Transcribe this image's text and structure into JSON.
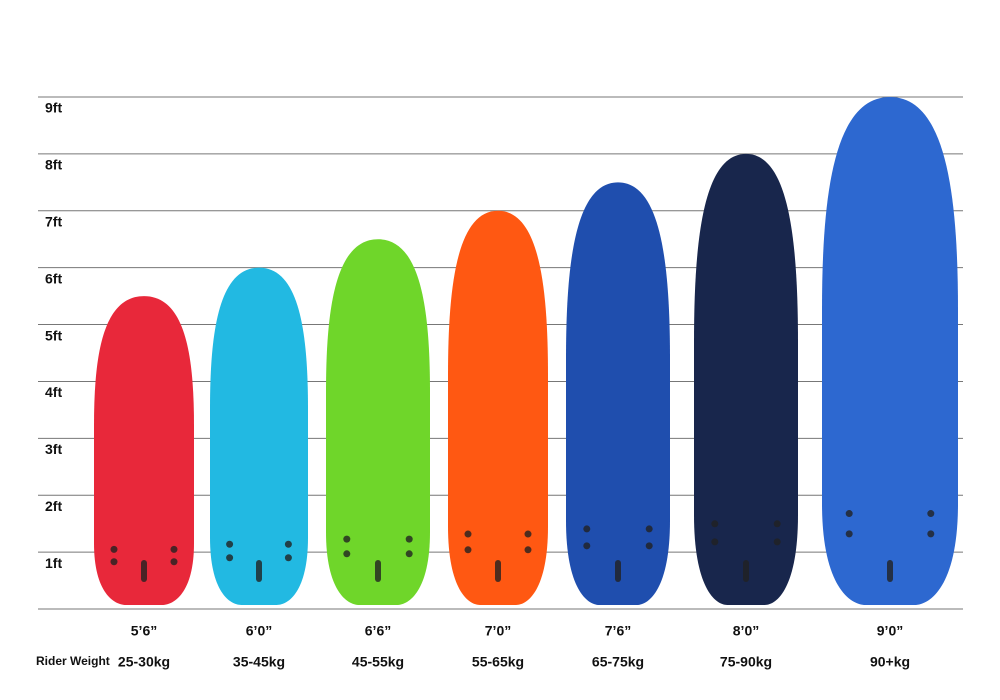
{
  "chart_data": {
    "type": "board",
    "categories": [
      "5’6”",
      "6’0”",
      "6’6”",
      "7’0”",
      "7’6”",
      "8’0”",
      "9’0”"
    ],
    "values": [
      5.5,
      6,
      6.5,
      7,
      7.5,
      8,
      9
    ],
    "colors": [
      "#e8283a",
      "#22b9e2",
      "#6fd62a",
      "#ff5812",
      "#1f4eae",
      "#18264c",
      "#2d68d0"
    ],
    "row_label": "Rider Weight",
    "rider_weights": [
      "25-30kg",
      "35-45kg",
      "45-55kg",
      "55-65kg",
      "65-75kg",
      "75-90kg",
      "90+kg"
    ],
    "ylim": [
      0,
      9
    ],
    "yticks": [
      {
        "value": 1,
        "label": "1ft"
      },
      {
        "value": 2,
        "label": "2ft"
      },
      {
        "value": 3,
        "label": "3ft"
      },
      {
        "value": 4,
        "label": "4ft"
      },
      {
        "value": 5,
        "label": "5ft"
      },
      {
        "value": 6,
        "label": "6ft"
      },
      {
        "value": 7,
        "label": "7ft"
      },
      {
        "value": 8,
        "label": "8ft"
      },
      {
        "value": 9,
        "label": "9ft"
      }
    ],
    "grid": true
  }
}
